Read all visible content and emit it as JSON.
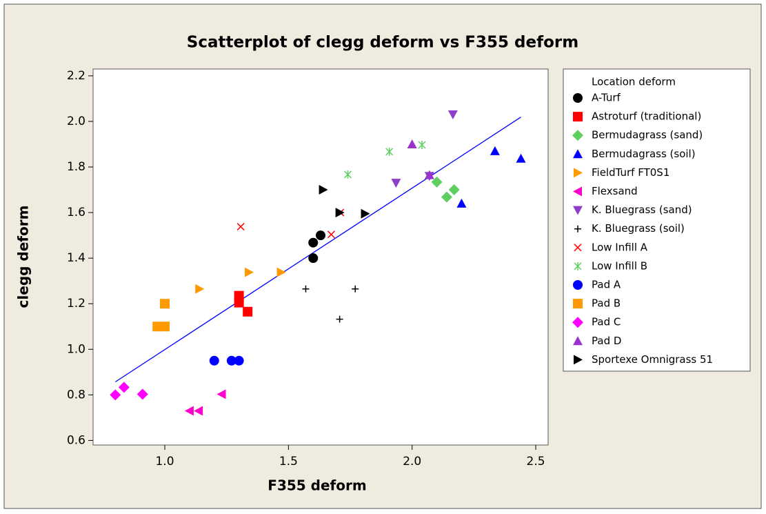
{
  "chart_data": {
    "type": "scatter",
    "title": "Scatterplot of clegg deform vs F355 deform",
    "xlabel": "F355 deform",
    "ylabel": "clegg deform",
    "legend_title": "Location deform",
    "legend": "right",
    "xlim": [
      0.71,
      2.55
    ],
    "ylim": [
      0.58,
      2.23
    ],
    "xticks": [
      {
        "value": 1,
        "label": "1.0"
      },
      {
        "value": 1.5,
        "label": "1.5"
      },
      {
        "value": 2,
        "label": "2.0"
      },
      {
        "value": 2.5,
        "label": "2.5"
      }
    ],
    "yticks": [
      {
        "value": 0.6,
        "label": "0.6"
      },
      {
        "value": 0.8,
        "label": "0.8"
      },
      {
        "value": 1,
        "label": "1.0"
      },
      {
        "value": 1.2,
        "label": "1.2"
      },
      {
        "value": 1.4,
        "label": "1.4"
      },
      {
        "value": 1.6,
        "label": "1.6"
      },
      {
        "value": 1.8,
        "label": "1.8"
      },
      {
        "value": 2,
        "label": "2.0"
      },
      {
        "value": 2.2,
        "label": "2.2"
      }
    ],
    "series": [
      {
        "name": "A-Turf",
        "color": "#000000",
        "marker": "circle",
        "x": [
          1.6,
          1.6,
          1.63
        ],
        "values": [
          1.468,
          1.4,
          1.5
        ]
      },
      {
        "name": "Astroturf (traditional)",
        "color": "#ff0000",
        "marker": "square",
        "x": [
          1.3,
          1.3,
          1.335
        ],
        "values": [
          1.235,
          1.205,
          1.165
        ]
      },
      {
        "name": "Bermudagrass (sand)",
        "color": "#5fcf5f",
        "marker": "diamond",
        "x": [
          2.1,
          2.14,
          2.17
        ],
        "values": [
          1.734,
          1.668,
          1.7
        ]
      },
      {
        "name": "Bermudagrass (soil)",
        "color": "#0000ff",
        "marker": "tri-up",
        "x": [
          2.335,
          2.44,
          2.2
        ],
        "values": [
          1.87,
          1.837,
          1.64
        ]
      },
      {
        "name": "FieldTurf FT0S1",
        "color": "#ff9900",
        "marker": "tri-right",
        "x": [
          1.14,
          1.34,
          1.47
        ],
        "values": [
          1.265,
          1.338,
          1.338
        ]
      },
      {
        "name": "Flexsand",
        "color": "#ff00cc",
        "marker": "tri-left",
        "x": [
          1.1,
          1.137,
          1.23
        ],
        "values": [
          0.73,
          0.73,
          0.803
        ]
      },
      {
        "name": "K. Bluegrass (sand)",
        "color": "#8c3fc8",
        "marker": "tri-down",
        "x": [
          2.165,
          1.935,
          2.07
        ],
        "values": [
          2.03,
          1.73,
          1.76
        ]
      },
      {
        "name": "K. Bluegrass (soil)",
        "color": "#000000",
        "marker": "plus",
        "x": [
          1.57,
          1.77,
          1.707
        ],
        "values": [
          1.265,
          1.265,
          1.132
        ]
      },
      {
        "name": "Low Infill A",
        "color": "#ff0000",
        "marker": "cross",
        "x": [
          1.307,
          1.673,
          1.71
        ],
        "values": [
          1.538,
          1.504,
          1.6
        ]
      },
      {
        "name": "Low Infill B",
        "color": "#5fcf5f",
        "marker": "asterisk",
        "x": [
          1.74,
          1.908,
          2.04
        ],
        "values": [
          1.767,
          1.867,
          1.897
        ]
      },
      {
        "name": "Pad A",
        "color": "#0000ff",
        "marker": "circle",
        "x": [
          1.2,
          1.27,
          1.3
        ],
        "values": [
          0.95,
          0.95,
          0.95
        ]
      },
      {
        "name": "Pad B",
        "color": "#ff9900",
        "marker": "square",
        "x": [
          1.0,
          0.97,
          1.0
        ],
        "values": [
          1.2,
          1.1,
          1.1
        ]
      },
      {
        "name": "Pad C",
        "color": "#ff00ff",
        "marker": "diamond",
        "x": [
          0.8,
          0.835,
          0.91
        ],
        "values": [
          0.8,
          0.833,
          0.803
        ]
      },
      {
        "name": "Pad D",
        "color": "#9933cc",
        "marker": "tri-up",
        "x": [
          2.0,
          2.07
        ],
        "values": [
          1.9,
          1.765
        ]
      },
      {
        "name": "Sportexe Omnigrass 51",
        "color": "#000000",
        "marker": "tri-right",
        "x": [
          1.64,
          1.707,
          1.81
        ],
        "values": [
          1.7,
          1.6,
          1.595
        ]
      }
    ],
    "fit_line": {
      "color": "#0000ff",
      "x": [
        0.8,
        2.44
      ],
      "values": [
        0.857,
        2.019
      ]
    }
  }
}
